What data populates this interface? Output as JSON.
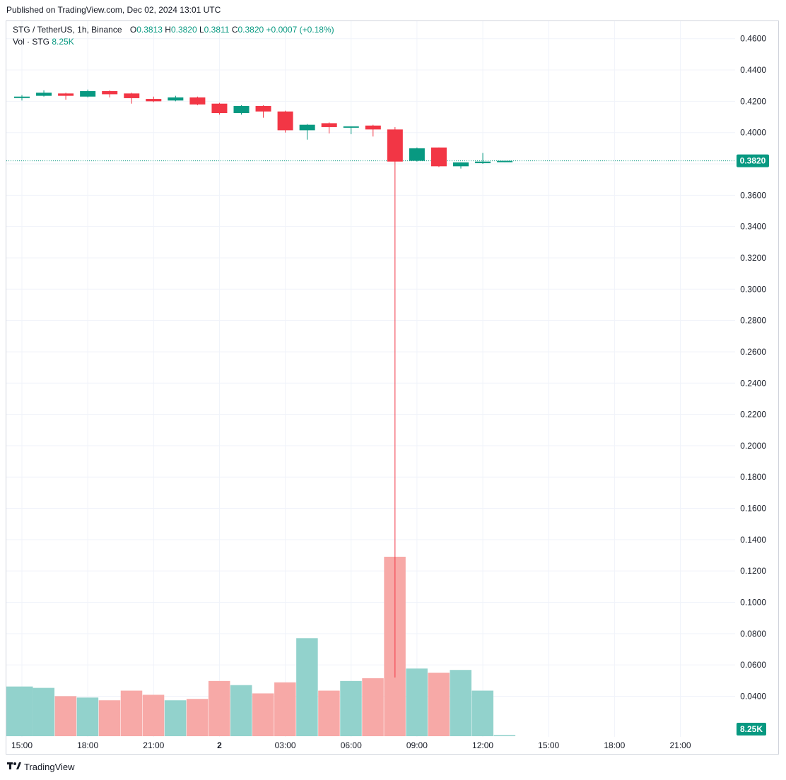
{
  "header": {
    "published": "Published on TradingView.com, Dec 02, 2024 13:01 UTC"
  },
  "legend": {
    "symbol": "STG / TetherUS, 1h, Binance",
    "o_label": "O",
    "o_value": "0.3813",
    "h_label": "H",
    "h_value": "0.3820",
    "l_label": "L",
    "l_value": "0.3811",
    "c_label": "C",
    "c_value": "0.3820",
    "change": "+0.0007 (+0.18%)",
    "vol_label": "Vol · STG",
    "vol_value": "8.25K"
  },
  "footer": {
    "brand": "TradingView",
    "logo_icon": "tradingview-logo-icon"
  },
  "colors": {
    "up": "#089981",
    "down": "#f23645",
    "vol_up": "#92d2cc",
    "vol_down": "#f7a9a7",
    "grid": "#f0f3fa",
    "axis_text": "#131722"
  },
  "chart_data": {
    "type": "candlestick",
    "ylim": [
      0.005,
      0.465
    ],
    "y_ticks": [
      "0.4600",
      "0.4400",
      "0.4200",
      "0.4000",
      "0.3800",
      "0.3600",
      "0.3400",
      "0.3200",
      "0.3000",
      "0.2800",
      "0.2600",
      "0.2400",
      "0.2200",
      "0.2000",
      "0.1800",
      "0.1600",
      "0.1400",
      "0.1200",
      "0.1000",
      "0.0800",
      "0.0600",
      "0.0400"
    ],
    "x_ticks": [
      "15:00",
      "18:00",
      "21:00",
      "2",
      "03:00",
      "06:00",
      "09:00",
      "12:00",
      "15:00",
      "18:00",
      "21:00"
    ],
    "last_price_label": "0.3820",
    "volume_label": "8.25K",
    "candles": [
      {
        "t": "14:00",
        "o": 0.4225,
        "h": 0.424,
        "l": 0.4205,
        "c": 0.423
      },
      {
        "t": "15:00",
        "o": 0.4235,
        "h": 0.427,
        "l": 0.423,
        "c": 0.4255
      },
      {
        "t": "16:00",
        "o": 0.425,
        "h": 0.4255,
        "l": 0.421,
        "c": 0.4235
      },
      {
        "t": "17:00",
        "o": 0.423,
        "h": 0.4275,
        "l": 0.4225,
        "c": 0.4265
      },
      {
        "t": "18:00",
        "o": 0.4265,
        "h": 0.427,
        "l": 0.4225,
        "c": 0.4245
      },
      {
        "t": "19:00",
        "o": 0.425,
        "h": 0.4255,
        "l": 0.4185,
        "c": 0.422
      },
      {
        "t": "20:00",
        "o": 0.4215,
        "h": 0.423,
        "l": 0.4195,
        "c": 0.42
      },
      {
        "t": "21:00",
        "o": 0.4205,
        "h": 0.4235,
        "l": 0.42,
        "c": 0.4225
      },
      {
        "t": "22:00",
        "o": 0.4225,
        "h": 0.423,
        "l": 0.4175,
        "c": 0.418
      },
      {
        "t": "23:00",
        "o": 0.4185,
        "h": 0.419,
        "l": 0.4115,
        "c": 0.4125
      },
      {
        "t": "00:00",
        "o": 0.4125,
        "h": 0.4175,
        "l": 0.4115,
        "c": 0.417
      },
      {
        "t": "01:00",
        "o": 0.417,
        "h": 0.4175,
        "l": 0.4095,
        "c": 0.4135
      },
      {
        "t": "02:00",
        "o": 0.4135,
        "h": 0.414,
        "l": 0.4,
        "c": 0.4015
      },
      {
        "t": "03:00",
        "o": 0.4015,
        "h": 0.4055,
        "l": 0.3955,
        "c": 0.405
      },
      {
        "t": "04:00",
        "o": 0.406,
        "h": 0.4065,
        "l": 0.3995,
        "c": 0.4035
      },
      {
        "t": "05:00",
        "o": 0.4035,
        "h": 0.404,
        "l": 0.399,
        "c": 0.404
      },
      {
        "t": "06:00",
        "o": 0.4045,
        "h": 0.405,
        "l": 0.3975,
        "c": 0.402
      },
      {
        "t": "07:00",
        "o": 0.402,
        "h": 0.4035,
        "l": 0.052,
        "c": 0.3815
      },
      {
        "t": "08:00",
        "o": 0.382,
        "h": 0.3905,
        "l": 0.3815,
        "c": 0.39
      },
      {
        "t": "09:00",
        "o": 0.3905,
        "h": 0.3905,
        "l": 0.378,
        "c": 0.3785
      },
      {
        "t": "10:00",
        "o": 0.3785,
        "h": 0.381,
        "l": 0.377,
        "c": 0.381
      },
      {
        "t": "11:00",
        "o": 0.3805,
        "h": 0.387,
        "l": 0.38,
        "c": 0.3815
      },
      {
        "t": "12:00",
        "o": 0.3813,
        "h": 0.382,
        "l": 0.3811,
        "c": 0.382
      }
    ],
    "volume": [
      36,
      35,
      29,
      28,
      26,
      33,
      30,
      26,
      27,
      40,
      37,
      31,
      39,
      71,
      33,
      40,
      42,
      130,
      49,
      46,
      48,
      33,
      0.8
    ],
    "volume_ylim": [
      0,
      140
    ]
  }
}
